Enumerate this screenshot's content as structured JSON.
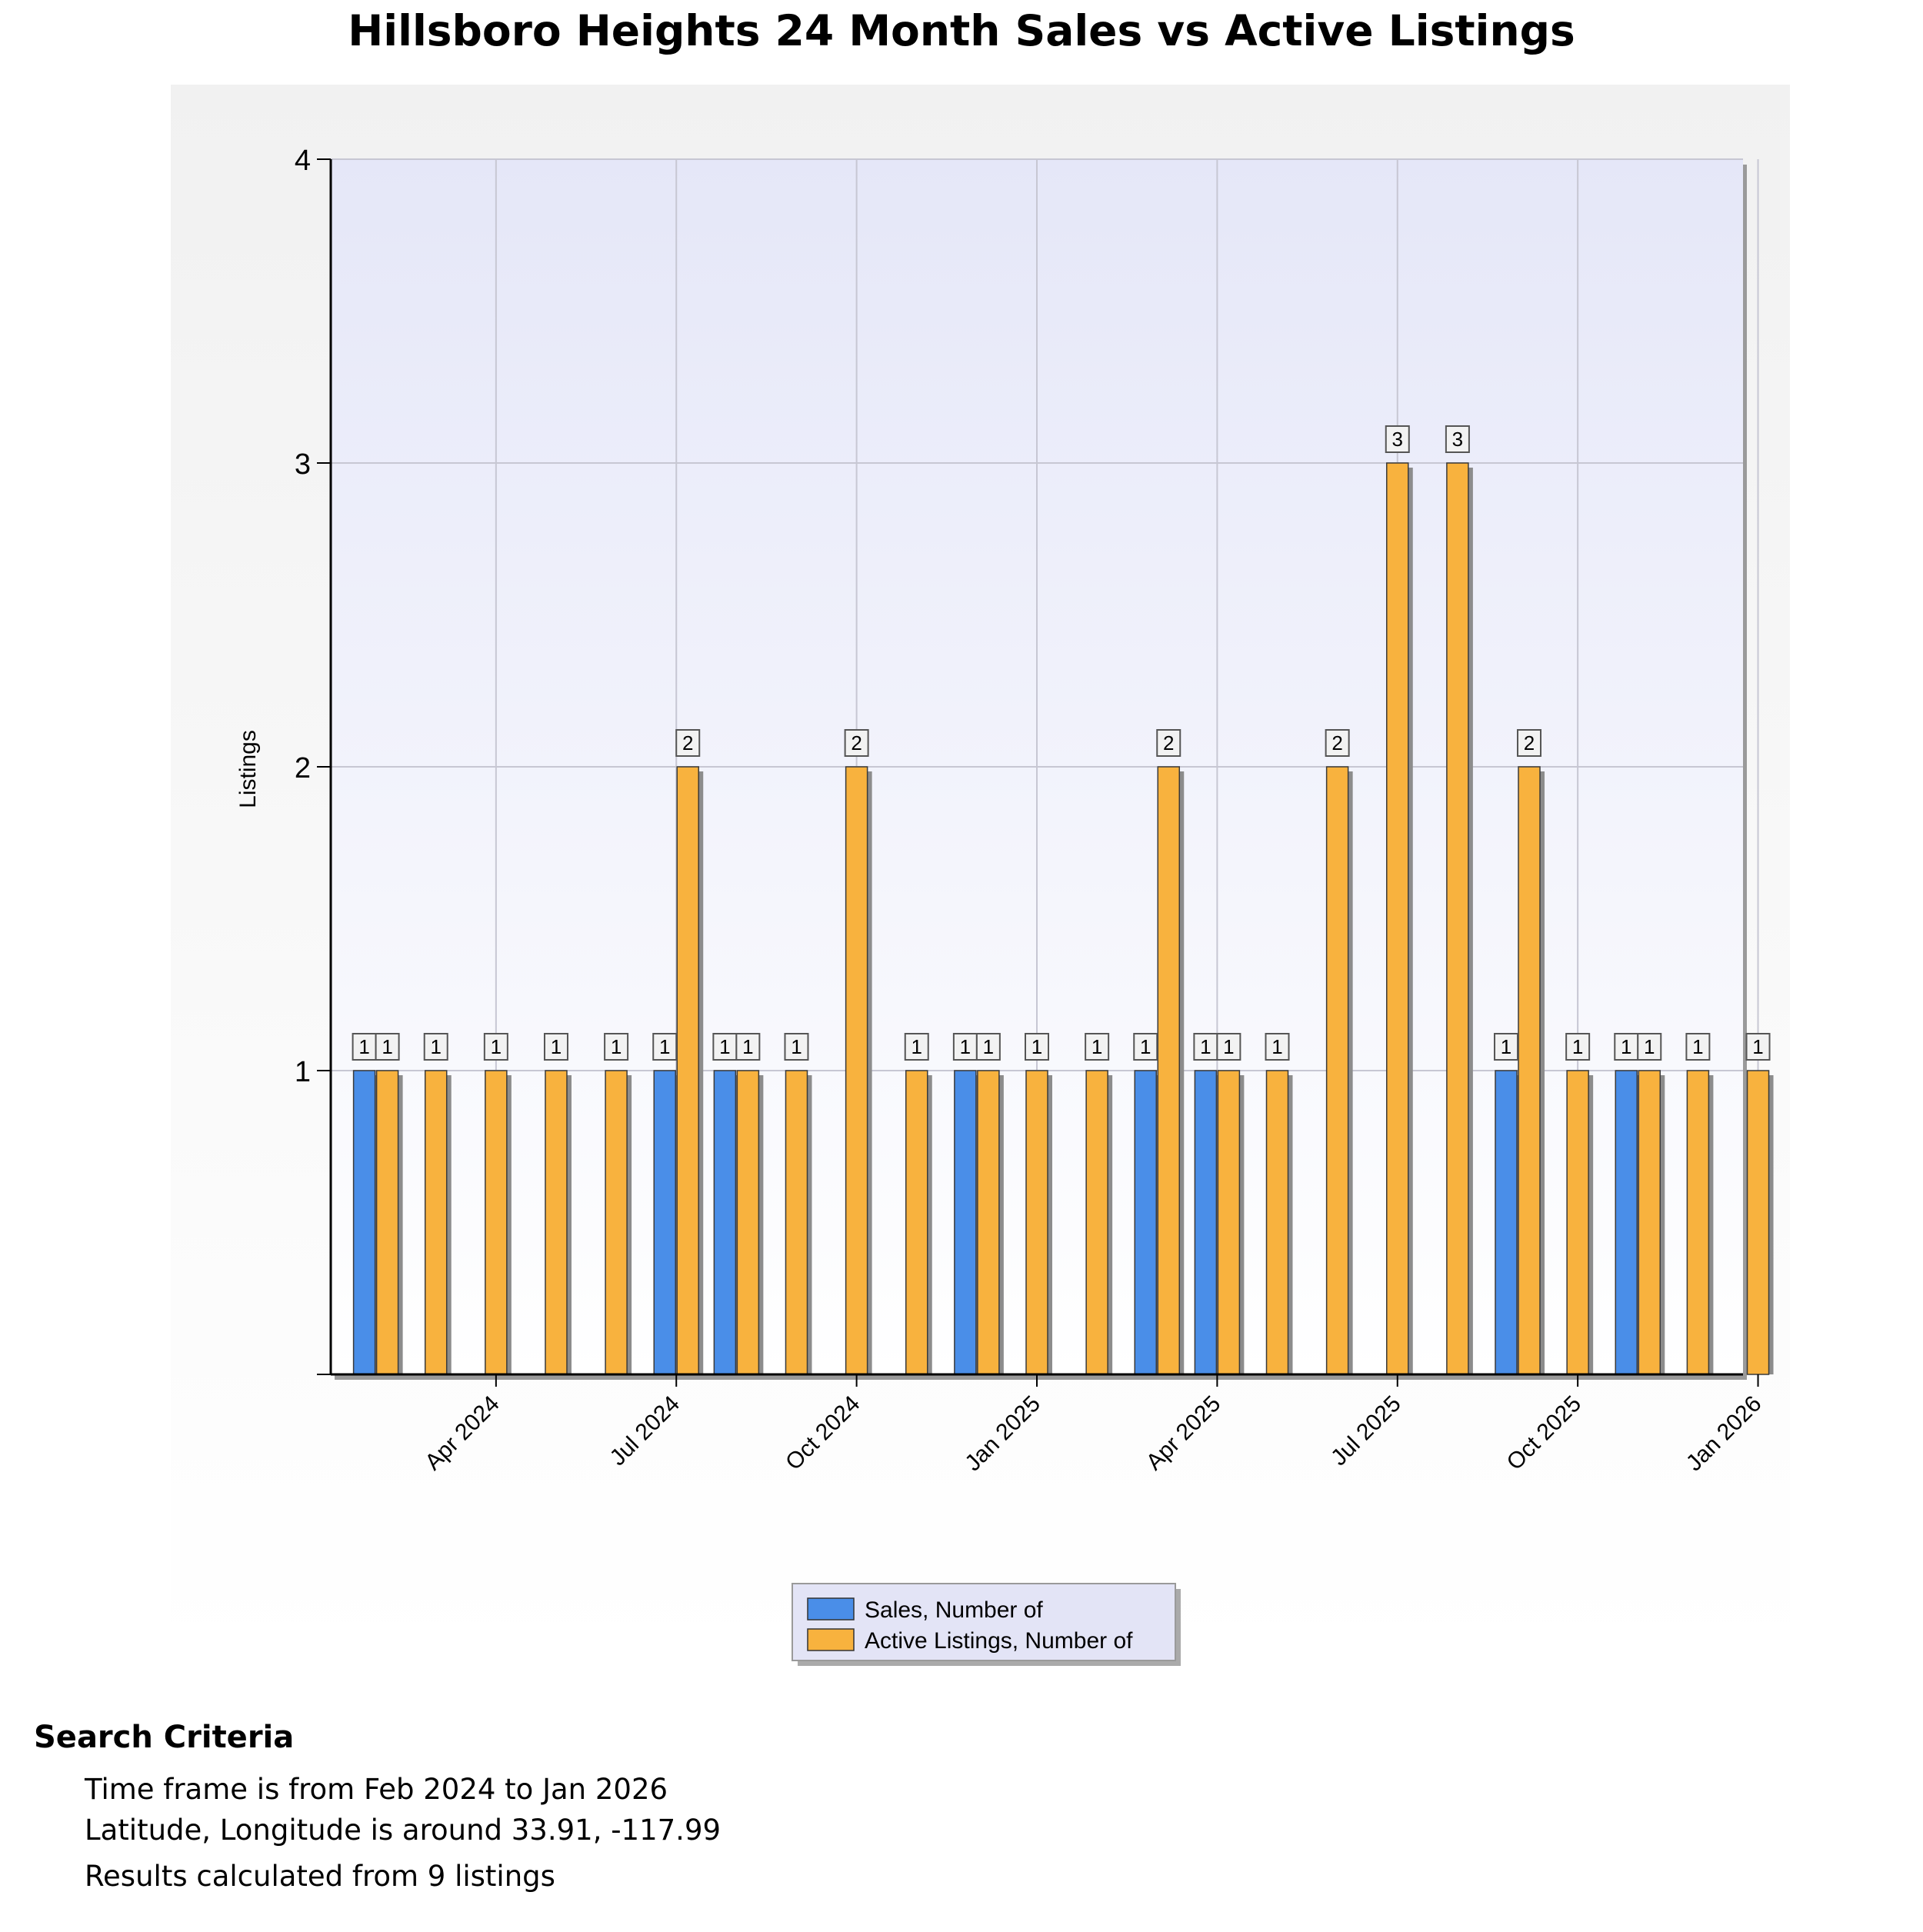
{
  "chart_data": {
    "type": "bar",
    "title": "Hillsboro Heights 24 Month Sales vs Active Listings",
    "ylabel": "Listings",
    "ylim": [
      0,
      4
    ],
    "yticks": [
      1,
      2,
      3,
      4
    ],
    "grid": true,
    "legend_position": "bottom-center",
    "categories": [
      "Feb 2024",
      "Mar 2024",
      "Apr 2024",
      "May 2024",
      "Jun 2024",
      "Jul 2024",
      "Aug 2024",
      "Sep 2024",
      "Oct 2024",
      "Nov 2024",
      "Dec 2024",
      "Jan 2025",
      "Feb 2025",
      "Mar 2025",
      "Apr 2025",
      "May 2025",
      "Jun 2025",
      "Jul 2025",
      "Aug 2025",
      "Sep 2025",
      "Oct 2025",
      "Nov 2025",
      "Dec 2025",
      "Jan 2026"
    ],
    "x_tick_labels": [
      {
        "category": "Apr 2024",
        "label": "Apr 2024"
      },
      {
        "category": "Jul 2024",
        "label": "Jul 2024"
      },
      {
        "category": "Oct 2024",
        "label": "Oct 2024"
      },
      {
        "category": "Jan 2025",
        "label": "Jan 2025"
      },
      {
        "category": "Apr 2025",
        "label": "Apr 2025"
      },
      {
        "category": "Jul 2025",
        "label": "Jul 2025"
      },
      {
        "category": "Oct 2025",
        "label": "Oct 2025"
      },
      {
        "category": "Jan 2026",
        "label": "Jan 2026"
      }
    ],
    "series": [
      {
        "name": "Sales, Number of",
        "color": "#4a8ee8",
        "values": [
          1,
          0,
          0,
          0,
          0,
          1,
          1,
          0,
          0,
          0,
          1,
          0,
          0,
          1,
          1,
          0,
          0,
          0,
          0,
          1,
          0,
          1,
          0,
          0
        ]
      },
      {
        "name": "Active Listings, Number of",
        "color": "#f8b23e",
        "values": [
          1,
          1,
          1,
          1,
          1,
          2,
          1,
          1,
          2,
          1,
          1,
          1,
          1,
          2,
          1,
          1,
          2,
          3,
          3,
          2,
          1,
          1,
          1,
          1
        ]
      }
    ]
  },
  "search_criteria": {
    "heading": "Search Criteria",
    "lines": [
      "Time frame is from Feb 2024 to Jan 2026",
      "Latitude, Longitude is around 33.91, -117.99",
      "Results calculated from 9 listings"
    ]
  }
}
